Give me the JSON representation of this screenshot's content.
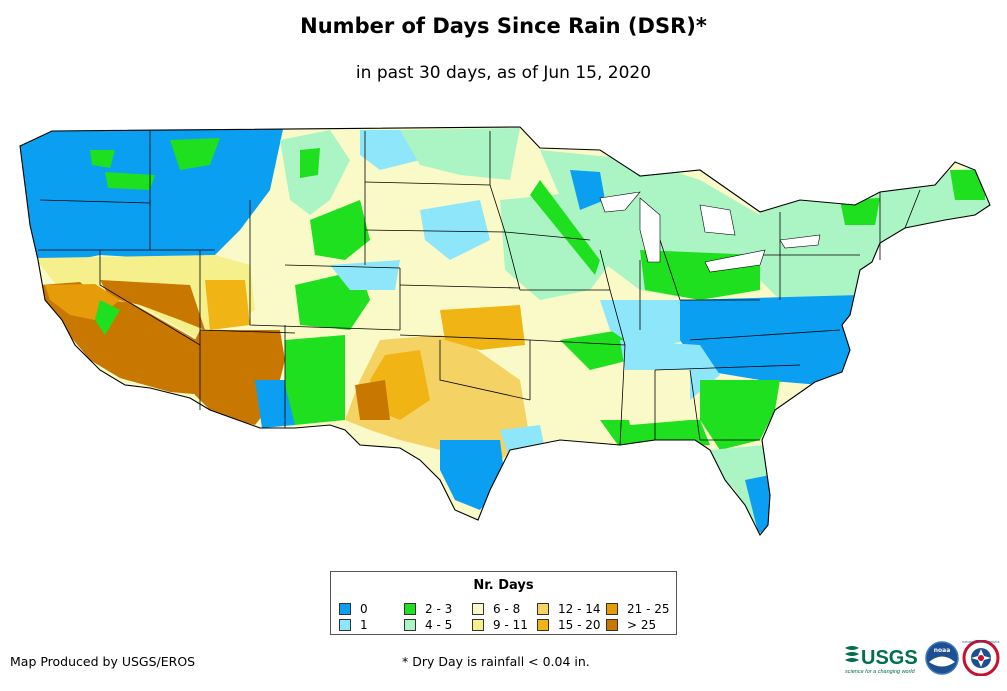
{
  "header": {
    "title": "Number of Days Since Rain (DSR)*",
    "subtitle": "in past 30 days, as of Jun 15, 2020"
  },
  "legend": {
    "title": "Nr. Days",
    "items": [
      {
        "label": "0",
        "color": "#0a9ff0"
      },
      {
        "label": "1",
        "color": "#8ee6fa"
      },
      {
        "label": "2 - 3",
        "color": "#1ee01e"
      },
      {
        "label": "4 - 5",
        "color": "#aaf5c3"
      },
      {
        "label": "6 - 8",
        "color": "#fafac8"
      },
      {
        "label": "9 - 11",
        "color": "#f5f08c"
      },
      {
        "label": "12 - 14",
        "color": "#f5d264"
      },
      {
        "label": "15 - 20",
        "color": "#f0b414"
      },
      {
        "label": "21 - 25",
        "color": "#e69b0a"
      },
      {
        "label": "> 25",
        "color": "#c87800"
      }
    ]
  },
  "footer": {
    "credit": "Map Produced by USGS/EROS",
    "footnote": "* Dry Day is rainfall < 0.04 in.",
    "usgs_logo_text": "USGS",
    "usgs_tagline": "science for a changing world",
    "noaa_logo_text": "noaa",
    "nws_logo_text": "NATIONAL WEATHER SERVICE"
  }
}
